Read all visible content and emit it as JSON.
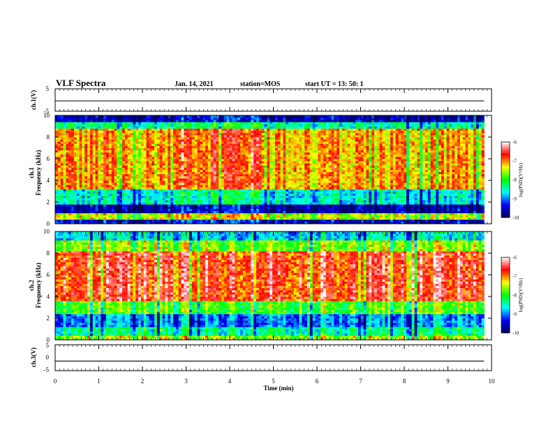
{
  "header": {
    "title": "VLF Spectra",
    "date": "Jan. 14, 2021",
    "station": "station=MOS",
    "start": "start  UT =  13: 50: 1"
  },
  "chart_data": [
    {
      "type": "line",
      "panel": "ch1 waveform",
      "ylabel": "ch.1(V)",
      "ylim": [
        -5,
        5
      ],
      "yticks": [
        "5",
        "-5"
      ],
      "x": [
        0,
        9.83
      ],
      "values": [
        -0.4,
        -0.4
      ]
    },
    {
      "type": "heatmap",
      "panel": "ch1 spectrogram",
      "ylabel_line1": "ch.1",
      "ylabel_line2": "Frequency (kHz)",
      "ylim": [
        0,
        10
      ],
      "yticks": [
        "0",
        "2",
        "4",
        "6",
        "8",
        "10"
      ],
      "freq_bands_khz": [
        {
          "from": 0,
          "to": 0.5,
          "level": -9.5
        },
        {
          "from": 0.5,
          "to": 1.0,
          "level": -7.5
        },
        {
          "from": 1.0,
          "to": 1.8,
          "level": -9.7
        },
        {
          "from": 1.8,
          "to": 3.2,
          "level": -8.6
        },
        {
          "from": 3.2,
          "to": 8.8,
          "level": -7.1
        },
        {
          "from": 8.8,
          "to": 9.4,
          "level": -8.4
        },
        {
          "from": 9.4,
          "to": 10,
          "level": -9.6
        }
      ],
      "enhanced_interval_min": [
        2.8,
        4.9
      ],
      "colorbar": {
        "ticks": [
          "-6",
          "-7",
          "-8",
          "-9",
          "-10"
        ],
        "label": "log(PSD)(V²/Hz)"
      }
    },
    {
      "type": "heatmap",
      "panel": "ch2 spectrogram",
      "ylabel_line1": "ch.2",
      "ylabel_line2": "Frequency (kHz)",
      "ylim": [
        0,
        10
      ],
      "yticks": [
        "0",
        "2",
        "4",
        "6",
        "8",
        "10"
      ],
      "freq_bands_khz": [
        {
          "from": 0,
          "to": 0.5,
          "level": -7.5
        },
        {
          "from": 0.5,
          "to": 1.2,
          "level": -8.3
        },
        {
          "from": 1.2,
          "to": 2.5,
          "level": -8.9
        },
        {
          "from": 2.5,
          "to": 3.6,
          "level": -7.8
        },
        {
          "from": 3.6,
          "to": 8.2,
          "level": -6.6
        },
        {
          "from": 8.2,
          "to": 9.3,
          "level": -7.6
        },
        {
          "from": 9.3,
          "to": 10,
          "level": -8.6
        }
      ],
      "colorbar": {
        "ticks": [
          "-6",
          "-7",
          "-8",
          "-9",
          "-10"
        ],
        "label": "log(PSD)(V²/Hz)"
      }
    },
    {
      "type": "line",
      "panel": "ch3 waveform",
      "ylabel": "ch.3(V)",
      "ylim": [
        -5,
        5
      ],
      "yticks": [
        "5",
        "0",
        "-5"
      ],
      "x": [
        0,
        9.83
      ],
      "values": [
        -1.3,
        -1.3
      ]
    }
  ],
  "xaxis": {
    "label": "Time (min)",
    "xlim": [
      0,
      10
    ],
    "ticks": [
      "0",
      "1",
      "2",
      "3",
      "4",
      "5",
      "6",
      "7",
      "8",
      "9",
      "10"
    ],
    "data_end_min": 9.83
  },
  "colors": {
    "colormap": [
      "#000055",
      "#0000ff",
      "#00ffff",
      "#00ff00",
      "#ffff00",
      "#ff0000",
      "#ffffff"
    ]
  }
}
